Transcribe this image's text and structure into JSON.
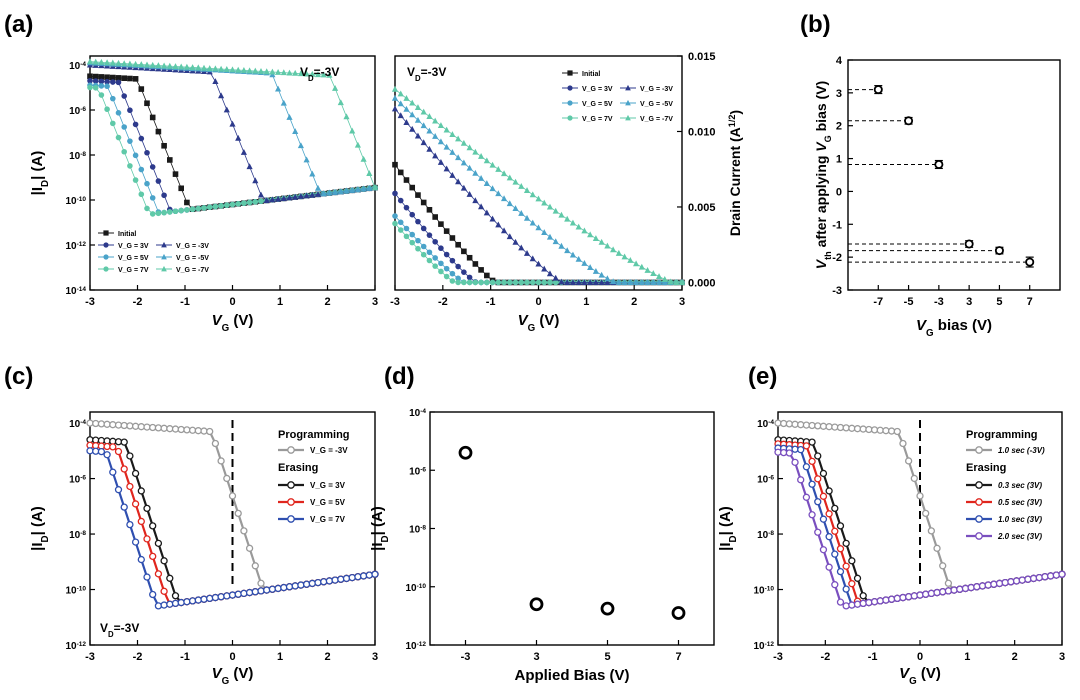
{
  "colors": {
    "initial": "#1a1a1a",
    "bias3": "#2d3a8c",
    "bias5": "#4aa3c9",
    "bias7": "#5fc9a8",
    "prog": "#9a9a9a",
    "red": "#e0261e",
    "blue": "#2f4fb0",
    "purple": "#7a4fbf"
  },
  "panel_labels": {
    "a": "(a)",
    "b": "(b)",
    "c": "(c)",
    "d": "(d)",
    "e": "(e)"
  },
  "chart_data": [
    {
      "id": "a-log",
      "type": "line",
      "title": "",
      "annotation": "V_D=-3V",
      "xlabel": "V_G (V)",
      "ylabel": "|I_D| (A)",
      "xlim": [
        -3,
        3
      ],
      "ylim_log10": [
        -14,
        -3.6
      ],
      "xticks": [
        "-3",
        "-2",
        "-1",
        "0",
        "1",
        "2",
        "3"
      ],
      "yticks": [
        "10^-4",
        "10^-6",
        "10^-8",
        "10^-10",
        "10^-12",
        "10^-14"
      ],
      "legend": {
        "position": "bottom-left",
        "entries": [
          "Initial",
          "V_G = 3V",
          "V_G = -3V",
          "V_G = 5V",
          "V_G = -5V",
          "V_G = 7V",
          "V_G = -7V"
        ]
      },
      "series": [
        {
          "name": "Initial",
          "vt": -0.9,
          "on_log10": -4.5,
          "marker": "square"
        },
        {
          "name": "V_G = 3V",
          "vt": -1.3,
          "on_log10": -4.7,
          "marker": "circle"
        },
        {
          "name": "V_G = 5V",
          "vt": -1.55,
          "on_log10": -4.9,
          "marker": "circle"
        },
        {
          "name": "V_G = 7V",
          "vt": -1.75,
          "on_log10": -5.0,
          "marker": "circle"
        },
        {
          "name": "V_G = -3V",
          "vt": 0.65,
          "on_log10": -4.0,
          "marker": "triangle"
        },
        {
          "name": "V_G = -5V",
          "vt": 1.85,
          "on_log10": -3.9,
          "marker": "triangle"
        },
        {
          "name": "V_G = -7V",
          "vt": 3.0,
          "on_log10": -3.85,
          "marker": "triangle"
        }
      ]
    },
    {
      "id": "a-lin",
      "type": "line",
      "annotation": "V_D=-3V",
      "xlabel": "V_G (V)",
      "ylabel": "Drain Current (A^1/2)",
      "xlim": [
        -3,
        3
      ],
      "ylim": [
        -0.0005,
        0.015
      ],
      "xticks": [
        "-3",
        "-2",
        "-1",
        "0",
        "1",
        "2",
        "3"
      ],
      "yticks": [
        "0.000",
        "0.005",
        "0.010",
        "0.015"
      ],
      "legend": {
        "position": "top-right",
        "entries": [
          "Initial",
          "V_G = 3V",
          "V_G = -3V",
          "V_G = 5V",
          "V_G = -5V",
          "V_G = 7V",
          "V_G = -7V"
        ]
      },
      "series": [
        {
          "name": "Initial",
          "vt": -0.9,
          "max": 0.0078
        },
        {
          "name": "V_G = 3V",
          "vt": -1.3,
          "max": 0.0059
        },
        {
          "name": "V_G = 5V",
          "vt": -1.55,
          "max": 0.0044
        },
        {
          "name": "V_G = 7V",
          "vt": -1.75,
          "max": 0.0039
        },
        {
          "name": "V_G = -3V",
          "vt": 0.5,
          "max": 0.0115
        },
        {
          "name": "V_G = -5V",
          "vt": 1.6,
          "max": 0.0122
        },
        {
          "name": "V_G = -7V",
          "vt": 2.8,
          "max": 0.0128
        }
      ]
    },
    {
      "id": "b",
      "type": "scatter",
      "xlabel": "V_G bias (V)",
      "ylabel": "V_th after applying V_G bias (V)",
      "categories": [
        "-7",
        "-5",
        "-3",
        "3",
        "5",
        "7"
      ],
      "values": [
        3.1,
        2.15,
        0.82,
        -1.6,
        -1.8,
        -2.15
      ],
      "errors": [
        0.12,
        0.1,
        0.12,
        0.1,
        0.1,
        0.15
      ],
      "ylim": [
        -3,
        4
      ],
      "yticks": [
        "4",
        "3",
        "2",
        "1",
        "0",
        "-1",
        "-2",
        "-3"
      ]
    },
    {
      "id": "c",
      "type": "line",
      "annotation": "V_D=-3V",
      "xlabel": "V_G (V)",
      "ylabel": "|I_D| (A)",
      "xlim": [
        -3,
        3
      ],
      "ylim_log10": [
        -12,
        -3.6
      ],
      "xticks": [
        "-3",
        "-2",
        "-1",
        "0",
        "1",
        "2",
        "3"
      ],
      "yticks": [
        "10^-4",
        "10^-6",
        "10^-8",
        "10^-10",
        "10^-12"
      ],
      "legend": {
        "position": "top-right",
        "group1": "Programming",
        "group2": "Erasing",
        "entries": [
          "V_G = -3V",
          "V_G = 3V",
          "V_G = 5V",
          "V_G = 7V"
        ]
      },
      "series": [
        {
          "name": "V_G = -3V",
          "vt": 0.65,
          "on_log10": -4.0
        },
        {
          "name": "V_G = 3V",
          "vt": -1.15,
          "on_log10": -4.6
        },
        {
          "name": "V_G = 5V",
          "vt": -1.35,
          "on_log10": -4.8
        },
        {
          "name": "V_G = 7V",
          "vt": -1.6,
          "on_log10": -5.0
        }
      ]
    },
    {
      "id": "d",
      "type": "scatter",
      "xlabel": "Applied Bias (V)",
      "ylabel": "|I_D| (A)",
      "categories": [
        "-3",
        "3",
        "5",
        "7"
      ],
      "values_log10": [
        -5.4,
        -10.6,
        -10.75,
        -10.9
      ],
      "ylim_log10": [
        -12,
        -4
      ],
      "yticks": [
        "10^-4",
        "10^-6",
        "10^-8",
        "10^-10",
        "10^-12"
      ]
    },
    {
      "id": "e",
      "type": "line",
      "xlabel": "V_G (V)",
      "ylabel": "|I_D| (A)",
      "xlim": [
        -3,
        3
      ],
      "ylim_log10": [
        -12,
        -3.6
      ],
      "xticks": [
        "-3",
        "-2",
        "-1",
        "0",
        "1",
        "2",
        "3"
      ],
      "yticks": [
        "10^-4",
        "10^-6",
        "10^-8",
        "10^-10",
        "10^-12"
      ],
      "legend": {
        "position": "top-right",
        "group1": "Programming",
        "group2": "Erasing",
        "entries": [
          "1.0 sec (-3V)",
          "0.3 sec (3V)",
          "0.5 sec (3V)",
          "1.0 sec (3V)",
          "2.0 sec (3V)"
        ]
      },
      "series": [
        {
          "name": "1.0 sec (-3V)",
          "vt": 0.65,
          "on_log10": -4.0
        },
        {
          "name": "0.3 sec (3V)",
          "vt": -1.15,
          "on_log10": -4.6
        },
        {
          "name": "0.5 sec (3V)",
          "vt": -1.3,
          "on_log10": -4.75
        },
        {
          "name": "1.0 sec (3V)",
          "vt": -1.45,
          "on_log10": -4.9
        },
        {
          "name": "2.0 sec (3V)",
          "vt": -1.65,
          "on_log10": -5.05
        }
      ]
    }
  ]
}
